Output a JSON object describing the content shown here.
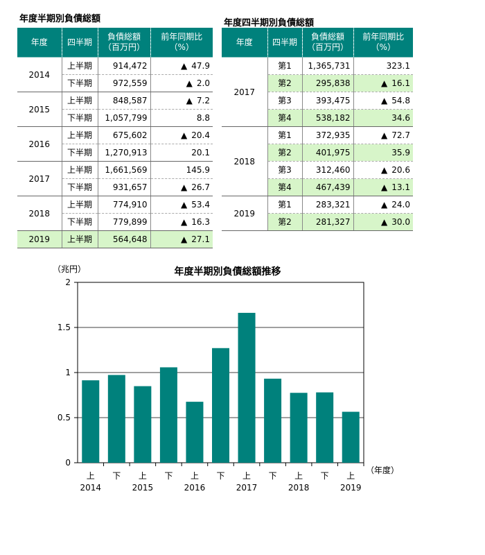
{
  "left_table": {
    "title": "年度半期別負債総額",
    "headers": [
      "年度",
      "四半期",
      "負債総額\n（百万円）",
      "前年同期比\n（%）"
    ],
    "groups": [
      {
        "year": "2014",
        "rows": [
          {
            "period": "上半期",
            "amount": "914,472",
            "neg": true,
            "change": "47.9"
          },
          {
            "period": "下半期",
            "amount": "972,559",
            "neg": true,
            "change": "2.0"
          }
        ]
      },
      {
        "year": "2015",
        "rows": [
          {
            "period": "上半期",
            "amount": "848,587",
            "neg": true,
            "change": "7.2"
          },
          {
            "period": "下半期",
            "amount": "1,057,799",
            "neg": false,
            "change": "8.8"
          }
        ]
      },
      {
        "year": "2016",
        "rows": [
          {
            "period": "上半期",
            "amount": "675,602",
            "neg": true,
            "change": "20.4"
          },
          {
            "period": "下半期",
            "amount": "1,270,913",
            "neg": false,
            "change": "20.1"
          }
        ]
      },
      {
        "year": "2017",
        "rows": [
          {
            "period": "上半期",
            "amount": "1,661,569",
            "neg": false,
            "change": "145.9"
          },
          {
            "period": "下半期",
            "amount": "931,657",
            "neg": true,
            "change": "26.7"
          }
        ]
      },
      {
        "year": "2018",
        "rows": [
          {
            "period": "上半期",
            "amount": "774,910",
            "neg": true,
            "change": "53.4"
          },
          {
            "period": "下半期",
            "amount": "779,899",
            "neg": true,
            "change": "16.3"
          }
        ]
      },
      {
        "year": "2019",
        "highlight": true,
        "rows": [
          {
            "period": "上半期",
            "amount": "564,648",
            "neg": true,
            "change": "27.1",
            "highlight": true
          }
        ]
      }
    ]
  },
  "right_table": {
    "title": "年度四半期別負債総額",
    "headers": [
      "年度",
      "四半期",
      "負債総額\n（百万円）",
      "前年同期比\n（%）"
    ],
    "groups": [
      {
        "year": "2017",
        "rows": [
          {
            "period": "第1",
            "amount": "1,365,731",
            "neg": false,
            "change": "323.1"
          },
          {
            "period": "第2",
            "amount": "295,838",
            "neg": true,
            "change": "16.1",
            "highlight": true
          },
          {
            "period": "第3",
            "amount": "393,475",
            "neg": true,
            "change": "54.8"
          },
          {
            "period": "第4",
            "amount": "538,182",
            "neg": false,
            "change": "34.6",
            "highlight": true
          }
        ]
      },
      {
        "year": "2018",
        "rows": [
          {
            "period": "第1",
            "amount": "372,935",
            "neg": true,
            "change": "72.7"
          },
          {
            "period": "第2",
            "amount": "401,975",
            "neg": false,
            "change": "35.9",
            "highlight": true
          },
          {
            "period": "第3",
            "amount": "312,460",
            "neg": true,
            "change": "20.6"
          },
          {
            "period": "第4",
            "amount": "467,439",
            "neg": true,
            "change": "13.1",
            "highlight": true
          }
        ]
      },
      {
        "year": "2019",
        "rows": [
          {
            "period": "第1",
            "amount": "283,321",
            "neg": true,
            "change": "24.0"
          },
          {
            "period": "第2",
            "amount": "281,327",
            "neg": true,
            "change": "30.0",
            "highlight": true
          }
        ]
      }
    ]
  },
  "triangle_glyph": "▲",
  "chart_data": {
    "type": "bar",
    "title": "年度半期別負債総額推移",
    "ylabel": "（兆円）",
    "xlabel": "（年度）",
    "ylim": [
      0,
      2
    ],
    "yticks": [
      "0",
      "0.5",
      "1",
      "1.5",
      "2"
    ],
    "categories": [
      "上",
      "下",
      "上",
      "下",
      "上",
      "下",
      "上",
      "下",
      "上",
      "下",
      "上"
    ],
    "year_labels": [
      "2014",
      "",
      "2015",
      "",
      "2016",
      "",
      "2017",
      "",
      "2018",
      "",
      "2019"
    ],
    "values": [
      0.914,
      0.973,
      0.849,
      1.058,
      0.676,
      1.271,
      1.662,
      0.932,
      0.775,
      0.78,
      0.565
    ],
    "grid": true,
    "bar_color": "#00817c"
  }
}
